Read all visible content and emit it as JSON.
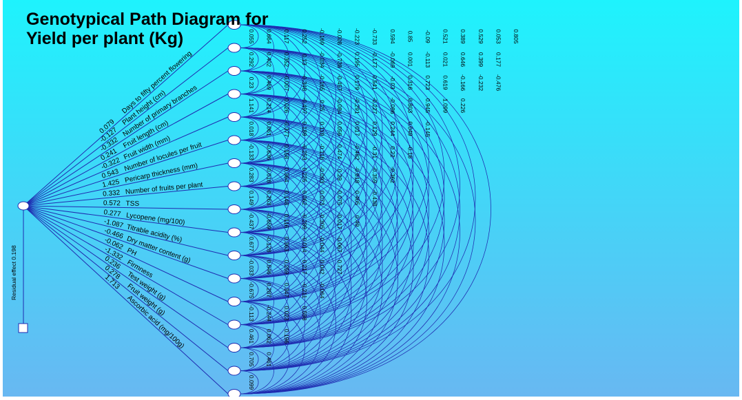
{
  "title": "Genotypical Path Diagram for\nYield per plant (Kg)",
  "residual_label": "Residual effect 0.198",
  "colors": {
    "bg_top": "#1ef3fd",
    "bg_bottom": "#68b8f2",
    "line": "#1f2bb0",
    "node_fill": "#ffffff"
  },
  "chart_data": {
    "type": "path-diagram",
    "dependent": "Yield per plant (Kg)",
    "residual_effect": 0.198,
    "variables": [
      {
        "name": "Days to fifty percent flowering",
        "direct": "0.079"
      },
      {
        "name": "Plant height (cm)",
        "direct": "-0.127"
      },
      {
        "name": "Number of primary branches",
        "direct": "-0.332"
      },
      {
        "name": "Fruit length (cm)",
        "direct": "0.241"
      },
      {
        "name": "Fruit width (mm)",
        "direct": "-0.322"
      },
      {
        "name": "Number of locules per fruit",
        "direct": "0.543"
      },
      {
        "name": "Pericarp thickness (mm)",
        "direct": "1.425"
      },
      {
        "name": "Number of fruits per plant",
        "direct": "0.332"
      },
      {
        "name": "TSS",
        "direct": "0.572"
      },
      {
        "name": "Lycopene (mg/100)",
        "direct": "0.277"
      },
      {
        "name": "Titrable acidity (%)",
        "direct": "-1.087"
      },
      {
        "name": "Dry matter content (g)",
        "direct": "-0.466"
      },
      {
        "name": "PH",
        "direct": "-0.062"
      },
      {
        "name": "Firmness",
        "direct": "-1.332"
      },
      {
        "name": "Test weight (g)",
        "direct": "0.236"
      },
      {
        "name": "Fruit weight (g)",
        "direct": "0.278"
      },
      {
        "name": "Ascorbic acid (mg/100g)",
        "direct": "1.713"
      }
    ],
    "correlation_columns": [
      [
        "0.055",
        "0.292",
        "0.23",
        "1.141",
        "0.018",
        "-0.133",
        "0.283",
        "0.149",
        "-0.437",
        "0.677",
        "-0.033",
        "-0.675",
        "-0.113",
        "0.461",
        "0.705",
        "0.099"
      ],
      [
        "0.664",
        "0.402",
        "0.469",
        "0.214",
        "0.061",
        "-0.636",
        "-0.018",
        "0.263",
        "-0.659",
        "-0.128",
        "0.546",
        "0.287",
        "-0.244",
        "0.062",
        "0.461"
      ],
      [
        "0.117",
        "0.352",
        "-0.007",
        "0.026",
        "-0.377",
        "0.158",
        "0.364",
        "0.148",
        "0.116",
        "0.363",
        "0.259",
        "0.347",
        "0.023",
        "0.196"
      ],
      [
        "0.252",
        "0.13",
        "-0.348",
        "-0.497",
        "0.189",
        "-0.253",
        "0.225",
        "0.062",
        "-0.289",
        "-0.014",
        "0.217",
        "-0.211",
        "0.598"
      ],
      [
        "-0.169",
        "-0.034",
        "-0.165",
        "0.25",
        "0.119",
        "-0.118",
        "-0.093",
        "0.073",
        "-0.305",
        "-0.044",
        "0.042",
        "-0.064"
      ],
      [
        "-0.008",
        "-0.738",
        "-0.457",
        "-0.084",
        "0.056",
        "0.474",
        "0.29",
        "0.075",
        "-0.017",
        "-0.067",
        "0.727"
      ],
      [
        "-0.223",
        "0.195",
        "0.179",
        "-0.291",
        "0.017",
        "-0.482",
        "-0.618",
        "0.405",
        "0.49"
      ],
      [
        "-0.733",
        "-0.177",
        "0.541",
        "-0.227",
        "0.129",
        "-0.31",
        "-0.359",
        "-0.438"
      ],
      [
        "0.594",
        "-0.069",
        "-0.03",
        "-0.086",
        "0.244",
        "0.22",
        "-0.362"
      ],
      [
        "0.85",
        "0.001",
        "0.316",
        "0.803",
        "0.049",
        "-0.16"
      ],
      [
        "-0.09",
        "-0.113",
        "0.723",
        "0.945",
        "-0.145"
      ],
      [
        "0.521",
        "0.021",
        "0.619",
        "1.099"
      ],
      [
        "0.389",
        "0.646",
        "-0.166",
        "0.226"
      ],
      [
        "0.529",
        "0.399",
        "-0.232"
      ],
      [
        "0.053",
        "0.177",
        "-0.476"
      ],
      [
        "0.805"
      ]
    ]
  }
}
